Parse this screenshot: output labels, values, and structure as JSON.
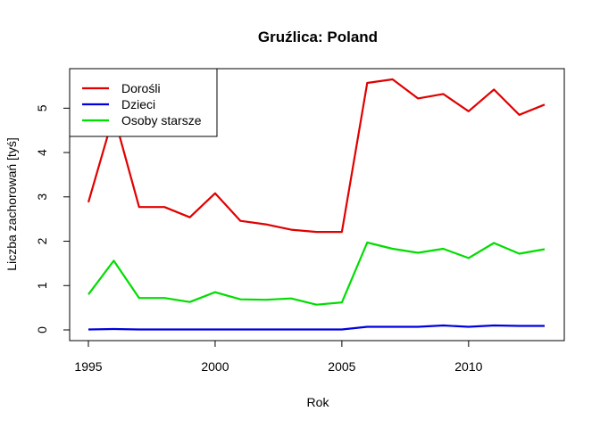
{
  "chart_data": {
    "type": "line",
    "title": "Gruźlica: Poland",
    "xlabel": "Rok",
    "ylabel": "Liczba zachorowań [tyś]",
    "xlim": [
      1995,
      2013
    ],
    "ylim": [
      0,
      5.65
    ],
    "x_ticks": [
      "1995",
      "2000",
      "2005",
      "2010"
    ],
    "y_ticks": [
      "0",
      "1",
      "2",
      "3",
      "4",
      "5"
    ],
    "grid": false,
    "legend_position": "top-left",
    "x": [
      1995,
      1996,
      1997,
      1998,
      1999,
      2000,
      2001,
      2002,
      2003,
      2004,
      2005,
      2006,
      2007,
      2008,
      2009,
      2010,
      2011,
      2012,
      2013
    ],
    "series": [
      {
        "name": "Dorośli",
        "color": "#e00000",
        "values": [
          2.88,
          4.85,
          2.77,
          2.77,
          2.54,
          3.08,
          2.46,
          2.38,
          2.26,
          2.21,
          2.21,
          5.57,
          5.65,
          5.22,
          5.32,
          4.93,
          5.42,
          4.85,
          5.08
        ]
      },
      {
        "name": "Dzieci",
        "color": "#0000dd",
        "values": [
          0.01,
          0.02,
          0.01,
          0.01,
          0.01,
          0.01,
          0.01,
          0.01,
          0.01,
          0.01,
          0.01,
          0.07,
          0.07,
          0.07,
          0.1,
          0.07,
          0.1,
          0.09,
          0.09
        ]
      },
      {
        "name": "Osoby starsze",
        "color": "#00dd00",
        "values": [
          0.8,
          1.56,
          0.72,
          0.72,
          0.63,
          0.85,
          0.69,
          0.68,
          0.71,
          0.57,
          0.62,
          1.97,
          1.83,
          1.74,
          1.83,
          1.62,
          1.96,
          1.72,
          1.82
        ]
      }
    ]
  }
}
